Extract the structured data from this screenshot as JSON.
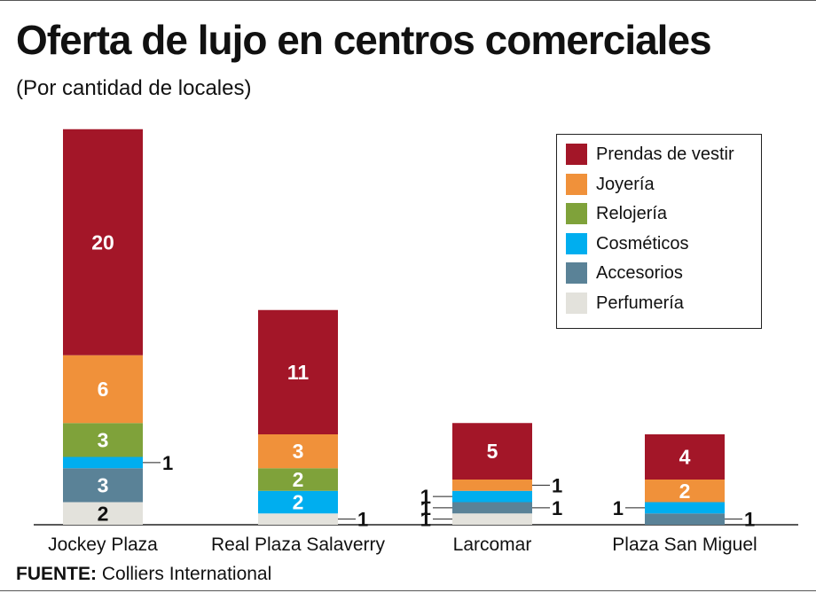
{
  "header": {
    "title": "Oferta de lujo en centros comerciales",
    "subtitle": "(Por cantidad de locales)"
  },
  "source": {
    "label": "FUENTE:",
    "text": "Colliers International"
  },
  "chart_data": {
    "type": "bar",
    "stacked": true,
    "title": "Oferta de lujo en centros comerciales",
    "subtitle": "(Por cantidad de locales)",
    "xlabel": "",
    "ylabel": "",
    "categories": [
      "Jockey Plaza",
      "Real Plaza Salaverry",
      "Larcomar",
      "Plaza San Miguel"
    ],
    "series": [
      {
        "name": "Perfumería",
        "color": "#e3e2dc",
        "values": [
          2,
          1,
          1,
          0
        ]
      },
      {
        "name": "Accesorios",
        "color": "#5a8297",
        "values": [
          3,
          0,
          1,
          1
        ]
      },
      {
        "name": "Cosméticos",
        "color": "#00aeef",
        "values": [
          1,
          2,
          1,
          1
        ]
      },
      {
        "name": "Relojería",
        "color": "#7fa23a",
        "values": [
          3,
          2,
          0,
          0
        ]
      },
      {
        "name": "Joyería",
        "color": "#f0913a",
        "values": [
          6,
          3,
          1,
          2
        ]
      },
      {
        "name": "Prendas de vestir",
        "color": "#a31628",
        "values": [
          20,
          11,
          5,
          4
        ]
      }
    ],
    "ylim": [
      0,
      35
    ],
    "grid": false,
    "legend_position": "top-right",
    "legend_order": [
      "Prendas de vestir",
      "Joyería",
      "Relojería",
      "Cosméticos",
      "Accesorios",
      "Perfumería"
    ]
  }
}
